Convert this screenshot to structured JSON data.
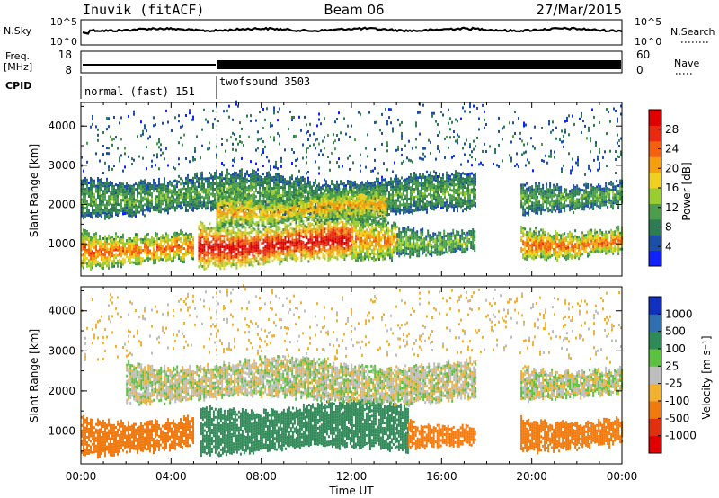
{
  "header": {
    "station": "Inuvik (fitACF)",
    "beam": "Beam 06",
    "date": "27/Mar/2015"
  },
  "strips": {
    "nsky": {
      "label": "N.Sky",
      "ticks": [
        "10^5",
        "10^0"
      ],
      "right_label": "N.Search",
      "right_ticks": [
        "10^5",
        "10^0"
      ]
    },
    "freq": {
      "label": "Freq.",
      "unit": "[MHz]",
      "ticks": [
        "18",
        "8"
      ],
      "right_label": "Nave",
      "right_ticks": [
        "60",
        "0"
      ]
    },
    "cpid": {
      "label": "CPID",
      "segments": [
        {
          "name": "normal (fast) 151",
          "start_hour": 0
        },
        {
          "name": "twofsound 3503",
          "start_hour": 6
        }
      ]
    }
  },
  "time_axis": {
    "label": "Time UT",
    "ticks": [
      "00:00",
      "04:00",
      "08:00",
      "12:00",
      "16:00",
      "20:00",
      "00:00"
    ]
  },
  "range_axis": {
    "label": "Slant Range [km]",
    "ticks": [
      "1000",
      "2000",
      "3000",
      "4000"
    ]
  },
  "power_colorbar": {
    "label": "Power [dB]",
    "ticks": [
      "4",
      "8",
      "12",
      "16",
      "20",
      "24",
      "28"
    ],
    "colors": [
      "#1020ff",
      "#1e4fa8",
      "#2e7d52",
      "#4c9e4c",
      "#9acd32",
      "#f0d020",
      "#f59f10",
      "#f36010",
      "#ea2a10",
      "#e00000"
    ]
  },
  "velocity_colorbar": {
    "label": "Velocity [m s⁻¹]",
    "ticks": [
      "1000",
      "500",
      "100",
      "25",
      "-25",
      "-100",
      "-500",
      "-1000"
    ],
    "colors": [
      "#1030c0",
      "#2f6fb0",
      "#2e8b57",
      "#5cc040",
      "#bdbdbd",
      "#f0b030",
      "#f07a10",
      "#e03010",
      "#e00000"
    ]
  },
  "chart_data": [
    {
      "type": "heatmap",
      "panel": "power",
      "xlabel": "Time UT",
      "ylabel": "Slant Range [km]",
      "xlim_hours": [
        0,
        24
      ],
      "ylim_km": [
        180,
        4600
      ],
      "colorbar": {
        "label": "Power [dB]",
        "range": [
          0,
          30
        ]
      },
      "bands": [
        {
          "t0": 0.0,
          "t1": 5.0,
          "r0": 500,
          "r1": 1300,
          "level_db": 22
        },
        {
          "t0": 5.2,
          "t1": 12.0,
          "r0": 500,
          "r1": 1500,
          "level_db": 28
        },
        {
          "t0": 12.0,
          "t1": 14.0,
          "r0": 700,
          "r1": 1700,
          "level_db": 20
        },
        {
          "t0": 14.0,
          "t1": 17.5,
          "r0": 800,
          "r1": 1400,
          "level_db": 12
        },
        {
          "t0": 19.5,
          "t1": 24.0,
          "r0": 700,
          "r1": 1400,
          "level_db": 22
        },
        {
          "t0": 0.0,
          "t1": 17.5,
          "r0": 1800,
          "r1": 2700,
          "level_db": 10
        },
        {
          "t0": 6.0,
          "t1": 13.5,
          "r0": 1500,
          "r1": 2300,
          "level_db": 18
        },
        {
          "t0": 19.5,
          "t1": 24.0,
          "r0": 1900,
          "r1": 2600,
          "level_db": 10
        },
        {
          "t0": 0.0,
          "t1": 24.0,
          "r0": 2900,
          "r1": 4500,
          "level_db": 6
        }
      ]
    },
    {
      "type": "heatmap",
      "panel": "velocity",
      "xlabel": "Time UT",
      "ylabel": "Slant Range [km]",
      "xlim_hours": [
        0,
        24
      ],
      "ylim_km": [
        180,
        4600
      ],
      "colorbar": {
        "label": "Velocity [m s⁻¹]",
        "range": [
          -1000,
          1000
        ]
      },
      "bands": [
        {
          "t0": 0.0,
          "t1": 5.0,
          "r0": 500,
          "r1": 1300,
          "velocity": -300
        },
        {
          "t0": 5.3,
          "t1": 14.5,
          "r0": 500,
          "r1": 1600,
          "velocity": 150
        },
        {
          "t0": 14.5,
          "t1": 17.5,
          "r0": 700,
          "r1": 1200,
          "velocity": -200
        },
        {
          "t0": 19.5,
          "t1": 24.0,
          "r0": 600,
          "r1": 1300,
          "velocity": -300
        },
        {
          "t0": 2.0,
          "t1": 17.5,
          "r0": 1800,
          "r1": 2700,
          "velocity": 0
        },
        {
          "t0": 19.5,
          "t1": 24.0,
          "r0": 1900,
          "r1": 2600,
          "velocity": 0
        },
        {
          "t0": 0.0,
          "t1": 24.0,
          "r0": 2900,
          "r1": 4500,
          "velocity": -50
        }
      ]
    }
  ]
}
